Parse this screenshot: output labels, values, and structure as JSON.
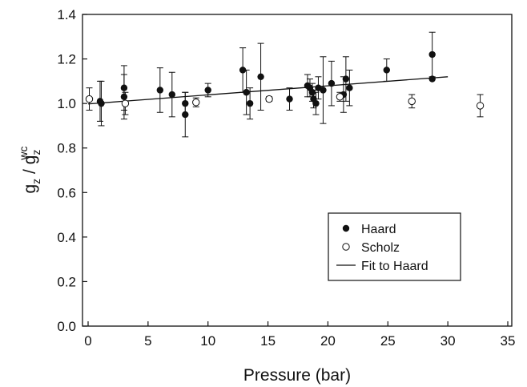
{
  "chart_data": {
    "type": "scatter",
    "xlabel": "Pressure (bar)",
    "ylabel": {
      "main": "g",
      "main_sub": "z",
      "sep": " / g",
      "ref_sub": "z",
      "ref_sup": "wc"
    },
    "xlim": [
      0,
      35
    ],
    "ylim": [
      0.0,
      1.4
    ],
    "x_ticks": [
      "0",
      "5",
      "10",
      "15",
      "20",
      "25",
      "30",
      "35"
    ],
    "y_ticks": [
      "0.0",
      "0.2",
      "0.4",
      "0.6",
      "0.8",
      "1.0",
      "1.2",
      "1.4"
    ],
    "x_tick_values": [
      0,
      5,
      10,
      15,
      20,
      25,
      30,
      35
    ],
    "y_tick_values": [
      0.0,
      0.2,
      0.4,
      0.6,
      0.8,
      1.0,
      1.2,
      1.4
    ],
    "grid": false,
    "legend_position": "lower-right",
    "series": [
      {
        "name": "Haard",
        "marker": "filled-circle",
        "color": "#111111",
        "points": [
          {
            "x": 1.0,
            "y": 1.01,
            "err": 0.09
          },
          {
            "x": 1.1,
            "y": 1.0,
            "err": 0.1
          },
          {
            "x": 3.0,
            "y": 1.07,
            "err": 0.1
          },
          {
            "x": 3.0,
            "y": 1.03,
            "err": 0.1
          },
          {
            "x": 6.0,
            "y": 1.06,
            "err": 0.1
          },
          {
            "x": 7.0,
            "y": 1.04,
            "err": 0.1
          },
          {
            "x": 8.1,
            "y": 1.0,
            "err": 0.05
          },
          {
            "x": 8.1,
            "y": 0.95,
            "err": 0.1
          },
          {
            "x": 10.0,
            "y": 1.06,
            "err": 0.03
          },
          {
            "x": 12.9,
            "y": 1.15,
            "err": 0.1
          },
          {
            "x": 13.2,
            "y": 1.05,
            "err": 0.1
          },
          {
            "x": 13.5,
            "y": 1.0,
            "err": 0.07
          },
          {
            "x": 14.4,
            "y": 1.12,
            "err": 0.15
          },
          {
            "x": 16.8,
            "y": 1.02,
            "err": 0.05
          },
          {
            "x": 18.3,
            "y": 1.08,
            "err": 0.05
          },
          {
            "x": 18.5,
            "y": 1.07,
            "err": 0.04
          },
          {
            "x": 18.7,
            "y": 1.05,
            "err": 0.04
          },
          {
            "x": 18.8,
            "y": 1.02,
            "err": 0.04
          },
          {
            "x": 19.0,
            "y": 1.0,
            "err": 0.05
          },
          {
            "x": 19.2,
            "y": 1.07,
            "err": 0.05
          },
          {
            "x": 19.6,
            "y": 1.06,
            "err": 0.15
          },
          {
            "x": 20.3,
            "y": 1.09,
            "err": 0.1
          },
          {
            "x": 21.3,
            "y": 1.04,
            "err": 0.08
          },
          {
            "x": 21.5,
            "y": 1.11,
            "err": 0.1
          },
          {
            "x": 21.8,
            "y": 1.07,
            "err": 0.08
          },
          {
            "x": 24.9,
            "y": 1.15,
            "err": 0.05
          },
          {
            "x": 28.7,
            "y": 1.22,
            "err": 0.1
          },
          {
            "x": 28.7,
            "y": 1.11,
            "err": 0.0
          }
        ]
      },
      {
        "name": "Scholz",
        "marker": "open-circle",
        "color": "#111111",
        "points": [
          {
            "x": 0.1,
            "y": 1.02,
            "err": 0.05
          },
          {
            "x": 3.1,
            "y": 1.0,
            "err": 0.05
          },
          {
            "x": 9.0,
            "y": 1.005,
            "err": 0.02
          },
          {
            "x": 15.1,
            "y": 1.02,
            "err": 0.01
          },
          {
            "x": 21.0,
            "y": 1.03,
            "err": 0.02
          },
          {
            "x": 27.0,
            "y": 1.01,
            "err": 0.03
          },
          {
            "x": 32.7,
            "y": 0.99,
            "err": 0.05
          }
        ]
      },
      {
        "name": "Fit to Haard",
        "marker": "line",
        "color": "#111111",
        "line": [
          [
            0,
            0.998
          ],
          [
            30,
            1.12
          ]
        ]
      }
    ]
  }
}
